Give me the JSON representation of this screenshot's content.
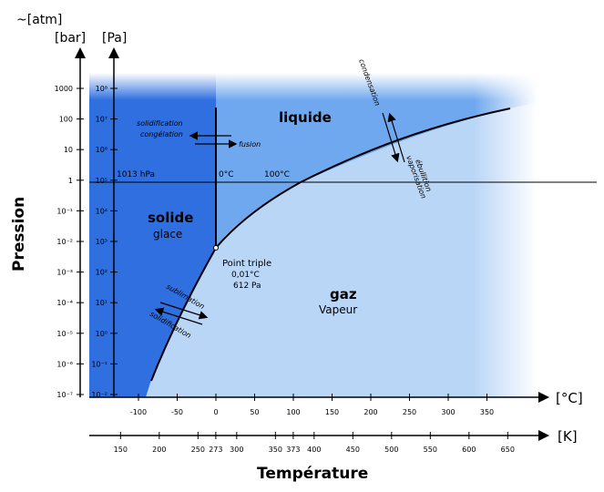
{
  "axes": {
    "y_unit_atm": "~[atm]",
    "y_unit_bar": "[bar]",
    "y_unit_pa": "[Pa]",
    "y_label": "Pression",
    "x_unit_c": "[°C]",
    "x_unit_k": "[K]",
    "x_label": "Température"
  },
  "ticks": {
    "bar": [
      "1000",
      "100",
      "10",
      "1",
      "10⁻¹",
      "10⁻²",
      "10⁻³",
      "10⁻⁴",
      "10⁻⁵",
      "10⁻⁶",
      "10⁻⁷"
    ],
    "pa": [
      "10⁸",
      "10⁷",
      "10⁶",
      "10⁵",
      "10⁴",
      "10³",
      "10²",
      "10¹",
      "10⁰",
      "10⁻¹",
      "10⁻²"
    ],
    "celsius": [
      "-100",
      "-50",
      "0",
      "50",
      "100",
      "150",
      "200",
      "250",
      "300",
      "350"
    ],
    "kelvin": [
      "150",
      "200",
      "250",
      "273",
      "300",
      "350",
      "373",
      "400",
      "450",
      "500",
      "550",
      "600",
      "650"
    ]
  },
  "regions": {
    "solid": "solide",
    "solid_sub": "glace",
    "liquid": "liquide",
    "gas": "gaz",
    "gas_sub": "Vapeur"
  },
  "labels": {
    "hpa": "1013 hPa",
    "zero_c": "0°C",
    "hundred_c": "100°C",
    "triple_title": "Point triple",
    "triple_temp": "0,01°C",
    "triple_pres": "612 Pa",
    "solidification": "solidification",
    "congelation": "congélation",
    "fusion": "fusion",
    "condensation": "condensation",
    "ebullition": "ébullition",
    "vaporisation": "vaporisation",
    "sublimation": "sublimation",
    "solidification2": "solidification"
  },
  "colors": {
    "solid": "#2f6fe0",
    "liquid": "#6fa8ee",
    "gas": "#b9d6f7",
    "line": "#000000"
  }
}
